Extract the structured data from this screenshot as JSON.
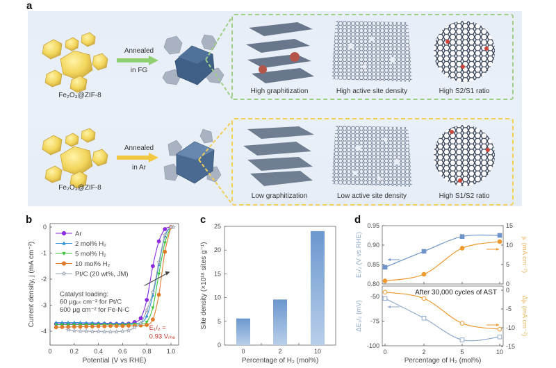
{
  "figure": {
    "panel_labels": {
      "a": "a",
      "b": "b",
      "c": "c",
      "d": "d"
    },
    "panel_a": {
      "rows": [
        {
          "precursor_label": "Fe₂O₃@ZIF-8",
          "process_label_1": "Annealed",
          "process_label_2": "in FG",
          "arrow_color": "#8fcf6f",
          "box_color": "#9fcf86",
          "cube_color": "#3f5f86",
          "captions": [
            "High graphitization",
            "High active site density",
            "High S2/S1 ratio"
          ]
        },
        {
          "precursor_label": "Fe₂O₃@ZIF-8",
          "process_label_1": "Annealed",
          "process_label_2": "in Ar",
          "arrow_color": "#f2c842",
          "box_color": "#f1cf55",
          "cube_color": "#4a6a92",
          "captions": [
            "Low graphitization",
            "Low active site density",
            "High S1/S2 ratio"
          ]
        }
      ]
    }
  },
  "chart_data": [
    {
      "id": "b",
      "type": "line",
      "title": "",
      "xlabel": "Potential (V vs RHE)",
      "ylabel": "Current density, j (mA cm⁻²)",
      "xlim": [
        0,
        1.1
      ],
      "ylim": [
        -4.5,
        0
      ],
      "xticks": [
        "0",
        "0.2",
        "0.4",
        "0.6",
        "0.8",
        "1.0"
      ],
      "xtick_values": [
        0,
        0.2,
        0.4,
        0.6,
        0.8,
        1.0
      ],
      "yticks": [
        "0",
        "-1",
        "-2",
        "-3",
        "-4"
      ],
      "ytick_values": [
        0,
        -1,
        -2,
        -3,
        -4
      ],
      "legend_position": "upper left",
      "series": [
        {
          "name": "Ar",
          "color": "#8a2be2",
          "marker": "circle",
          "x": [
            0.05,
            0.1,
            0.15,
            0.2,
            0.25,
            0.3,
            0.35,
            0.4,
            0.45,
            0.5,
            0.55,
            0.6,
            0.65,
            0.7,
            0.75,
            0.8,
            0.85,
            0.9,
            0.95,
            1.0
          ],
          "y": [
            -3.72,
            -3.72,
            -3.72,
            -3.72,
            -3.72,
            -3.72,
            -3.72,
            -3.72,
            -3.72,
            -3.72,
            -3.72,
            -3.72,
            -3.71,
            -3.65,
            -3.5,
            -2.8,
            -1.5,
            -0.55,
            -0.08,
            0.0
          ]
        },
        {
          "name": "2 mol% H₂",
          "color": "#2f8fd8",
          "marker": "triangle-up",
          "x": [
            0.05,
            0.1,
            0.15,
            0.2,
            0.25,
            0.3,
            0.35,
            0.4,
            0.45,
            0.5,
            0.55,
            0.6,
            0.65,
            0.7,
            0.75,
            0.8,
            0.85,
            0.9,
            0.95,
            1.0
          ],
          "y": [
            -3.67,
            -3.67,
            -3.67,
            -3.67,
            -3.67,
            -3.68,
            -3.68,
            -3.69,
            -3.69,
            -3.7,
            -3.7,
            -3.7,
            -3.7,
            -3.7,
            -3.69,
            -3.42,
            -2.62,
            -1.45,
            -0.35,
            0.0
          ]
        },
        {
          "name": "5 mol% H₂",
          "color": "#39c43a",
          "marker": "triangle-down",
          "x": [
            0.05,
            0.1,
            0.15,
            0.2,
            0.25,
            0.3,
            0.35,
            0.4,
            0.45,
            0.5,
            0.55,
            0.6,
            0.65,
            0.7,
            0.75,
            0.8,
            0.85,
            0.9,
            0.95,
            1.0
          ],
          "y": [
            -3.75,
            -3.75,
            -3.75,
            -3.75,
            -3.75,
            -3.75,
            -3.75,
            -3.75,
            -3.75,
            -3.75,
            -3.75,
            -3.75,
            -3.74,
            -3.73,
            -3.72,
            -3.65,
            -3.1,
            -1.8,
            -0.6,
            0.0
          ]
        },
        {
          "name": "10 mol% H₂",
          "color": "#e07b2a",
          "marker": "circle",
          "x": [
            0.05,
            0.1,
            0.15,
            0.2,
            0.25,
            0.3,
            0.35,
            0.4,
            0.45,
            0.5,
            0.55,
            0.6,
            0.65,
            0.7,
            0.75,
            0.8,
            0.85,
            0.9,
            0.95,
            1.0
          ],
          "y": [
            -3.85,
            -3.84,
            -3.84,
            -3.83,
            -3.83,
            -3.82,
            -3.82,
            -3.81,
            -3.81,
            -3.8,
            -3.8,
            -3.8,
            -3.79,
            -3.79,
            -3.78,
            -3.76,
            -3.55,
            -2.6,
            -0.95,
            0.0
          ]
        },
        {
          "name": "Pt/C (20 wt%, JM)",
          "color": "#9aa4b2",
          "marker": "star",
          "x": [
            0.15,
            0.2,
            0.25,
            0.3,
            0.35,
            0.4,
            0.45,
            0.5,
            0.55,
            0.6,
            0.65,
            0.7,
            0.75,
            0.8,
            0.85,
            0.9,
            0.95,
            1.0,
            1.02
          ],
          "y": [
            -3.95,
            -3.98,
            -4.0,
            -4.0,
            -4.01,
            -4.01,
            -4.02,
            -4.02,
            -4.02,
            -4.0,
            -3.97,
            -3.85,
            -3.7,
            -3.2,
            -2.5,
            -1.35,
            -0.3,
            0.0,
            0.0
          ]
        }
      ],
      "annotations": [
        {
          "text": "Catalyst loading:",
          "x": 0.08,
          "y": -2.65
        },
        {
          "text": "60 µgₚₜ cm⁻² for Pt/C",
          "x": 0.08,
          "y": -2.95
        },
        {
          "text": "600 µg cm⁻² for Fe-N-C",
          "x": 0.08,
          "y": -3.25
        },
        {
          "text": "E₁/₂ =",
          "x": 0.82,
          "y": -3.95,
          "color": "#c0392b"
        },
        {
          "text": "0.93 Vᵣₕₑ",
          "x": 0.82,
          "y": -4.28,
          "color": "#c0392b"
        }
      ],
      "trend_arrow": {
        "from": [
          0.78,
          -2.25
        ],
        "to": [
          0.98,
          -1.75
        ],
        "color": "#444"
      }
    },
    {
      "id": "c",
      "type": "bar",
      "title": "",
      "categories": [
        "0",
        "2",
        "10"
      ],
      "values": [
        5.6,
        9.6,
        24.0
      ],
      "xlabel": "Percentage of H₂ (mol%)",
      "ylabel": "Site density (×10¹⁸ sites g⁻¹)",
      "ylim": [
        0,
        25
      ],
      "yticks": [
        "0",
        "5",
        "10",
        "15",
        "20",
        "25"
      ],
      "bar_color": "#6b97cf",
      "grid": false
    },
    {
      "id": "d_top",
      "type": "line",
      "title": "",
      "categories": [
        "0",
        "2",
        "5",
        "10"
      ],
      "xlabel": "Percentage of H₂ (mol%)",
      "series": [
        {
          "name": "E₁/₂ (V vs RHE)",
          "axis": "left",
          "color": "#6e93c8",
          "marker": "square",
          "values": [
            0.843,
            0.884,
            0.922,
            0.925
          ]
        },
        {
          "name": "jₖ (mA cm⁻²)",
          "axis": "right",
          "color": "#ee9a2e",
          "marker": "circle",
          "values": [
            0.8,
            2.5,
            9.2,
            10.9
          ]
        }
      ],
      "ylabel_left": "E₁/₂ (V vs RHE)",
      "ylabel_right": "jₖ (mA cm⁻²)",
      "ylim_left": [
        0.8,
        0.95
      ],
      "ylim_right": [
        0,
        15
      ],
      "yticks_left": [
        "0.80",
        "0.85",
        "0.90",
        "0.95"
      ],
      "yticks_right": [
        "0",
        "5",
        "10",
        "15"
      ]
    },
    {
      "id": "d_bottom",
      "type": "line",
      "title": "After 30,000 cycles of AST",
      "categories": [
        "0",
        "2",
        "5",
        "10"
      ],
      "xlabel": "Percentage of H₂ (mol%)",
      "series": [
        {
          "name": "ΔE₁/₂ (mV)",
          "axis": "left",
          "color": "#8fa9cf",
          "marker": "open-square",
          "values": [
            -52,
            -72,
            -94,
            -91
          ]
        },
        {
          "name": "Δjₖ (mA cm⁻²)",
          "axis": "right",
          "color": "#ee9a2e",
          "marker": "open-circle",
          "values": [
            -0.5,
            -2.2,
            -8.8,
            -10.4
          ]
        }
      ],
      "ylabel_left": "ΔE₁/₂ (mV)",
      "ylabel_right": "Δjₖ (mA cm⁻²)",
      "ylim_left": [
        -100,
        -40
      ],
      "ylim_right": [
        -15,
        1
      ],
      "yticks_left": [
        "-50",
        "-75",
        "-100"
      ],
      "yticks_right": [
        "0",
        "-5",
        "-10",
        "-15"
      ]
    }
  ]
}
